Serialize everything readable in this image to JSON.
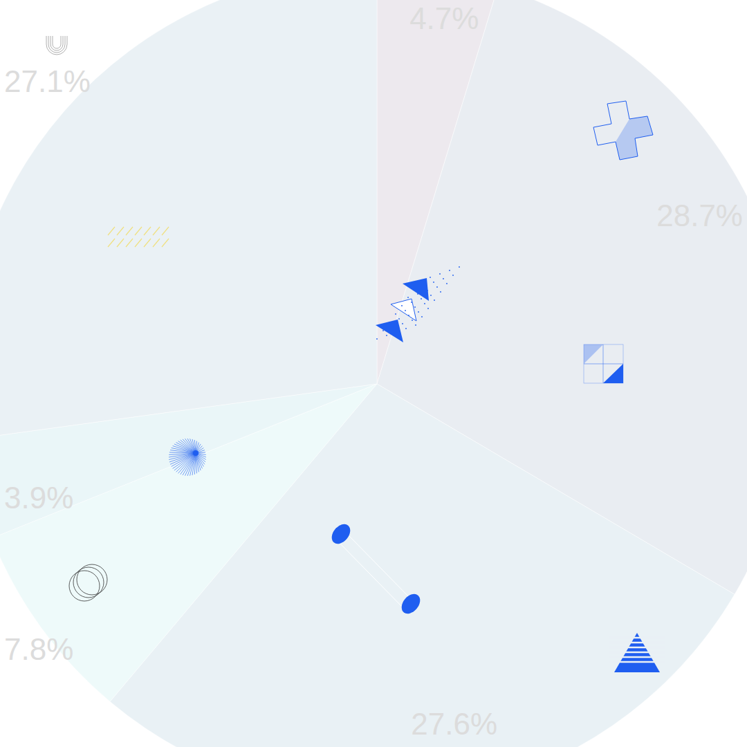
{
  "chart_data": {
    "type": "pie",
    "values": [
      4.7,
      28.7,
      27.6,
      7.8,
      3.9,
      27.1
    ],
    "value_labels": [
      "4.7%",
      "28.7%",
      "27.6%",
      "7.8%",
      "3.9%",
      "27.1%"
    ],
    "colors": [
      "#ede9ee",
      "#e9edf2",
      "#e9f1f5",
      "#eefafa",
      "#eaf6f8",
      "#eaf1f5"
    ],
    "data_labels": true
  }
}
